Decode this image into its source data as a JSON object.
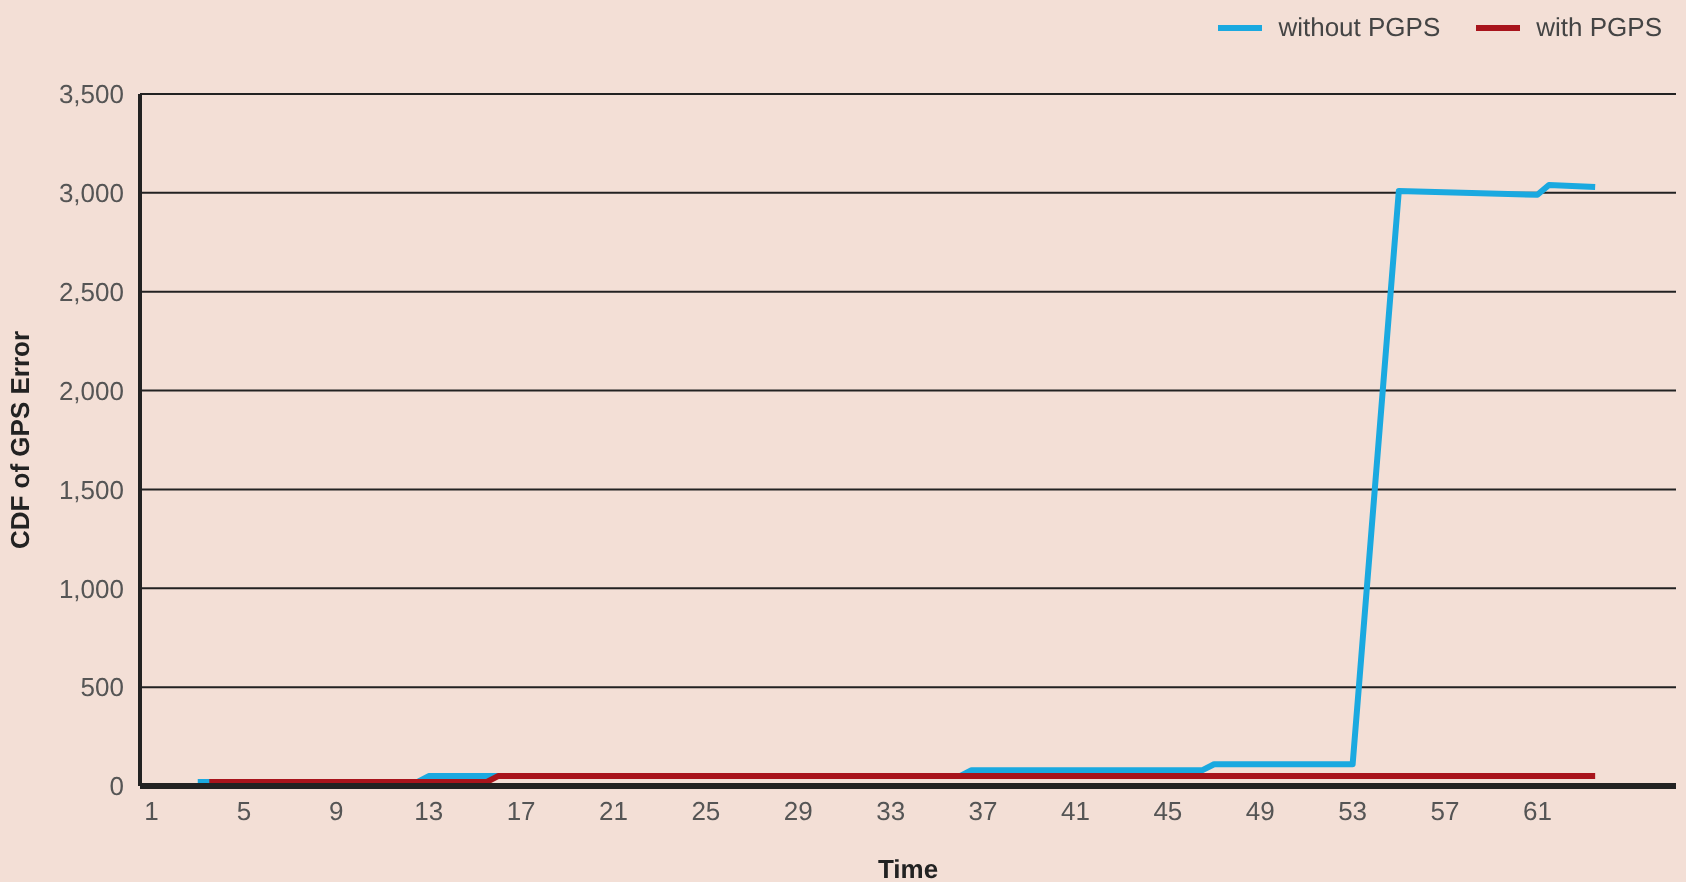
{
  "chart_data": {
    "type": "line",
    "xlabel": "Time",
    "ylabel": "CDF of GPS Error",
    "xlim": [
      0.5,
      67
    ],
    "xticks": [
      1,
      5,
      9,
      13,
      17,
      21,
      25,
      29,
      33,
      37,
      41,
      45,
      49,
      53,
      57,
      61
    ],
    "ylim": [
      0,
      3500
    ],
    "yticks": [
      0,
      500,
      {
        "value": 1000,
        "label": "1,000"
      },
      {
        "value": 1500,
        "label": "1,500"
      },
      {
        "value": 2000,
        "label": "2,000"
      },
      {
        "value": 2500,
        "label": "2,500"
      },
      {
        "value": 3000,
        "label": "3,000"
      },
      {
        "value": 3500,
        "label": "3,500"
      }
    ],
    "grid": "y",
    "legend": "top right",
    "marker": "none",
    "line_style": "solid",
    "series": [
      {
        "name": "without PGPS",
        "color": "#1aa9e0",
        "x": [
          3,
          12.5,
          13,
          36,
          36.5,
          46.5,
          47,
          53,
          55,
          61,
          61.5,
          63.5
        ],
        "values": [
          20,
          20,
          50,
          50,
          80,
          80,
          110,
          110,
          3010,
          2990,
          3040,
          3030
        ]
      },
      {
        "name": "with PGPS",
        "color": "#a8141c",
        "x": [
          3.5,
          15.5,
          16,
          63.5
        ],
        "values": [
          20,
          20,
          50,
          50
        ]
      }
    ]
  }
}
